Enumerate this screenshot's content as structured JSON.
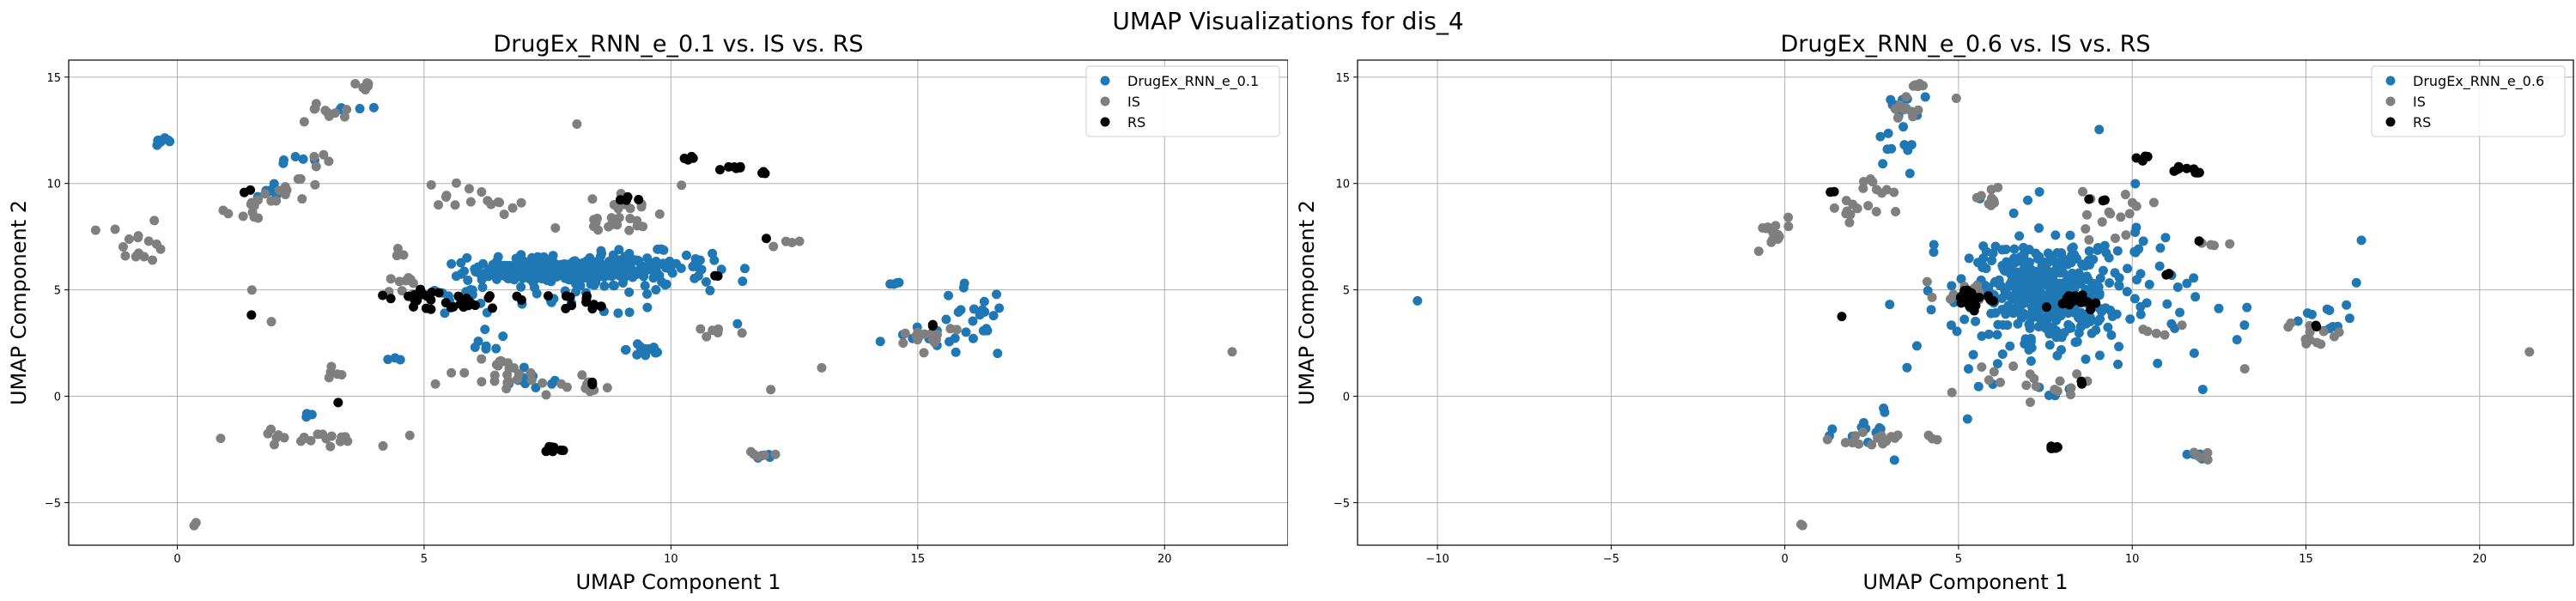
{
  "figure": {
    "title": "UMAP Visualizations for dis_4"
  },
  "colors": {
    "generated": "#1f77b4",
    "IS": "#7f7f7f",
    "RS": "#000000",
    "grid": "#b0b0b0"
  },
  "chart_data": [
    {
      "type": "scatter",
      "title": "DrugEx_RNN_e_0.1 vs. IS vs. RS",
      "xlabel": "UMAP Component 1",
      "ylabel": "UMAP Component 2",
      "xlim": [
        -2.2,
        22.5
      ],
      "ylim": [
        -7.0,
        15.8
      ],
      "xticks": [
        0,
        5,
        10,
        15,
        20
      ],
      "yticks": [
        -5,
        0,
        5,
        10,
        15
      ],
      "grid": true,
      "legend_position": "top-right",
      "series": [
        {
          "name": "DrugEx_RNN_e_0.1",
          "color": "#1f77b4",
          "clusters": [
            {
              "cx": 7.5,
              "cy": 5.9,
              "sx": 0.85,
              "sy": 0.3,
              "n": 160
            },
            {
              "cx": 9.0,
              "cy": 6.1,
              "sx": 0.9,
              "sy": 0.35,
              "n": 130
            },
            {
              "cx": 8.2,
              "cy": 5.2,
              "sx": 1.4,
              "sy": 0.7,
              "n": 60
            },
            {
              "cx": 9.5,
              "cy": 2.2,
              "sx": 0.2,
              "sy": 0.25,
              "n": 16
            },
            {
              "cx": 7.2,
              "cy": 0.7,
              "sx": 0.4,
              "sy": 0.2,
              "n": 10
            },
            {
              "cx": 6.3,
              "cy": 2.3,
              "sx": 0.3,
              "sy": 0.4,
              "n": 8
            },
            {
              "cx": 5.5,
              "cy": 4.6,
              "sx": 0.3,
              "sy": 0.25,
              "n": 10
            },
            {
              "cx": 16.1,
              "cy": 3.4,
              "sx": 0.35,
              "sy": 0.9,
              "n": 22
            },
            {
              "cx": 15.3,
              "cy": 2.8,
              "sx": 0.4,
              "sy": 0.25,
              "n": 12
            },
            {
              "cx": 14.5,
              "cy": 5.2,
              "sx": 0.08,
              "sy": 0.1,
              "n": 4
            },
            {
              "cx": -0.3,
              "cy": 11.9,
              "sx": 0.15,
              "sy": 0.1,
              "n": 8
            },
            {
              "cx": 2.6,
              "cy": 11.2,
              "sx": 0.2,
              "sy": 0.1,
              "n": 5
            },
            {
              "cx": 1.9,
              "cy": 9.6,
              "sx": 0.3,
              "sy": 0.3,
              "n": 6
            },
            {
              "cx": 3.5,
              "cy": 13.5,
              "sx": 0.2,
              "sy": 0.1,
              "n": 4
            },
            {
              "cx": 12.0,
              "cy": -2.8,
              "sx": 0.15,
              "sy": 0.1,
              "n": 4
            },
            {
              "cx": 2.7,
              "cy": -0.8,
              "sx": 0.08,
              "sy": 0.1,
              "n": 3
            },
            {
              "cx": 4.4,
              "cy": 1.7,
              "sx": 0.1,
              "sy": 0.1,
              "n": 3
            }
          ]
        },
        {
          "name": "IS",
          "color": "#7f7f7f",
          "clusters": [
            {
              "cx": -0.8,
              "cy": 7.3,
              "sx": 0.3,
              "sy": 0.5,
              "n": 16
            },
            {
              "cx": 1.6,
              "cy": 8.8,
              "sx": 0.3,
              "sy": 0.3,
              "n": 12
            },
            {
              "cx": 2.4,
              "cy": 9.8,
              "sx": 0.3,
              "sy": 0.3,
              "n": 10
            },
            {
              "cx": 3.0,
              "cy": 13.3,
              "sx": 0.3,
              "sy": 0.3,
              "n": 10
            },
            {
              "cx": 3.8,
              "cy": 14.6,
              "sx": 0.15,
              "sy": 0.08,
              "n": 7
            },
            {
              "cx": 2.9,
              "cy": 11.2,
              "sx": 0.15,
              "sy": 0.1,
              "n": 4
            },
            {
              "cx": 2.5,
              "cy": -2.0,
              "sx": 0.7,
              "sy": 0.2,
              "n": 22
            },
            {
              "cx": 3.2,
              "cy": 1.1,
              "sx": 0.15,
              "sy": 0.2,
              "n": 5
            },
            {
              "cx": 5.7,
              "cy": 9.5,
              "sx": 0.35,
              "sy": 0.3,
              "n": 10
            },
            {
              "cx": 6.5,
              "cy": 9.0,
              "sx": 0.2,
              "sy": 0.2,
              "n": 6
            },
            {
              "cx": 9.0,
              "cy": 8.7,
              "sx": 0.6,
              "sy": 0.6,
              "n": 16
            },
            {
              "cx": 8.7,
              "cy": 7.9,
              "sx": 0.5,
              "sy": 0.3,
              "n": 12
            },
            {
              "cx": 6.9,
              "cy": 0.7,
              "sx": 0.8,
              "sy": 0.35,
              "n": 20
            },
            {
              "cx": 6.6,
              "cy": 1.5,
              "sx": 0.4,
              "sy": 0.3,
              "n": 8
            },
            {
              "cx": 8.2,
              "cy": 0.4,
              "sx": 0.3,
              "sy": 0.2,
              "n": 6
            },
            {
              "cx": 4.8,
              "cy": 5.2,
              "sx": 0.3,
              "sy": 0.3,
              "n": 10
            },
            {
              "cx": 10.8,
              "cy": 3.1,
              "sx": 0.3,
              "sy": 0.2,
              "n": 6
            },
            {
              "cx": 12.5,
              "cy": 7.2,
              "sx": 0.3,
              "sy": 0.1,
              "n": 4
            },
            {
              "cx": 11.8,
              "cy": -2.7,
              "sx": 0.2,
              "sy": 0.1,
              "n": 5
            },
            {
              "cx": 15.2,
              "cy": 2.9,
              "sx": 0.4,
              "sy": 0.3,
              "n": 14
            },
            {
              "cx": 21.4,
              "cy": 2.1,
              "sx": 0.03,
              "sy": 0.03,
              "n": 1
            },
            {
              "cx": 0.4,
              "cy": -6.0,
              "sx": 0.05,
              "sy": 0.05,
              "n": 2
            },
            {
              "cx": 4.5,
              "cy": 6.6,
              "sx": 0.2,
              "sy": 0.2,
              "n": 3
            },
            {
              "cx": 8.1,
              "cy": 12.7,
              "sx": 0.05,
              "sy": 0.05,
              "n": 1
            },
            {
              "cx": 12.0,
              "cy": 0.3,
              "sx": 0.05,
              "sy": 0.05,
              "n": 1
            },
            {
              "cx": 13.1,
              "cy": 1.3,
              "sx": 0.05,
              "sy": 0.05,
              "n": 1
            },
            {
              "cx": 2.0,
              "cy": 3.5,
              "sx": 0.05,
              "sy": 0.05,
              "n": 1
            },
            {
              "cx": 1.5,
              "cy": 5.0,
              "sx": 0.05,
              "sy": 0.05,
              "n": 1
            }
          ]
        },
        {
          "name": "RS",
          "color": "#000000",
          "clusters": [
            {
              "cx": 4.8,
              "cy": 4.7,
              "sx": 0.22,
              "sy": 0.18,
              "n": 16
            },
            {
              "cx": 5.9,
              "cy": 4.5,
              "sx": 0.45,
              "sy": 0.25,
              "n": 20
            },
            {
              "cx": 8.3,
              "cy": 4.5,
              "sx": 0.3,
              "sy": 0.2,
              "n": 12
            },
            {
              "cx": 7.6,
              "cy": -2.5,
              "sx": 0.12,
              "sy": 0.1,
              "n": 7
            },
            {
              "cx": 10.3,
              "cy": 11.2,
              "sx": 0.12,
              "sy": 0.08,
              "n": 4
            },
            {
              "cx": 11.2,
              "cy": 10.7,
              "sx": 0.2,
              "sy": 0.08,
              "n": 6
            },
            {
              "cx": 11.9,
              "cy": 10.5,
              "sx": 0.08,
              "sy": 0.08,
              "n": 4
            },
            {
              "cx": 9.0,
              "cy": 9.3,
              "sx": 0.3,
              "sy": 0.1,
              "n": 4
            },
            {
              "cx": 10.9,
              "cy": 5.7,
              "sx": 0.05,
              "sy": 0.05,
              "n": 2
            },
            {
              "cx": 11.9,
              "cy": 7.3,
              "sx": 0.05,
              "sy": 0.05,
              "n": 1
            },
            {
              "cx": 8.4,
              "cy": 0.6,
              "sx": 0.05,
              "sy": 0.05,
              "n": 2
            },
            {
              "cx": 15.3,
              "cy": 3.3,
              "sx": 0.05,
              "sy": 0.05,
              "n": 2
            },
            {
              "cx": 1.4,
              "cy": 3.8,
              "sx": 0.05,
              "sy": 0.05,
              "n": 1
            },
            {
              "cx": 3.2,
              "cy": -0.2,
              "sx": 0.05,
              "sy": 0.05,
              "n": 1
            },
            {
              "cx": 1.4,
              "cy": 9.6,
              "sx": 0.05,
              "sy": 0.05,
              "n": 2
            }
          ]
        }
      ]
    },
    {
      "type": "scatter",
      "title": "DrugEx_RNN_e_0.6 vs. IS vs. RS",
      "xlabel": "UMAP Component 1",
      "ylabel": "UMAP Component 2",
      "xlim": [
        -12.3,
        22.7
      ],
      "ylim": [
        -7.0,
        15.8
      ],
      "xticks": [
        -10,
        -5,
        0,
        5,
        10,
        15,
        20
      ],
      "yticks": [
        -5,
        0,
        5,
        10,
        15
      ],
      "grid": true,
      "legend_position": "top-right",
      "series": [
        {
          "name": "DrugEx_RNN_e_0.6",
          "color": "#1f77b4",
          "clusters": [
            {
              "cx": 7.5,
              "cy": 4.8,
              "sx": 0.9,
              "sy": 1.0,
              "n": 320
            },
            {
              "cx": 7.8,
              "cy": 4.8,
              "sx": 2.0,
              "sy": 2.0,
              "n": 160
            },
            {
              "cx": 3.5,
              "cy": 13.8,
              "sx": 0.4,
              "sy": 0.8,
              "n": 12
            },
            {
              "cx": 3.1,
              "cy": 11.0,
              "sx": 0.3,
              "sy": 0.5,
              "n": 8
            },
            {
              "cx": 2.6,
              "cy": -1.5,
              "sx": 0.5,
              "sy": 0.6,
              "n": 14
            },
            {
              "cx": 15.8,
              "cy": 3.5,
              "sx": 0.4,
              "sy": 0.8,
              "n": 12
            },
            {
              "cx": 11.8,
              "cy": -2.8,
              "sx": 0.2,
              "sy": 0.1,
              "n": 4
            },
            {
              "cx": -10.6,
              "cy": 4.4,
              "sx": 0.03,
              "sy": 0.03,
              "n": 1
            },
            {
              "cx": 9.0,
              "cy": 12.6,
              "sx": 0.05,
              "sy": 0.05,
              "n": 1
            },
            {
              "cx": 16.6,
              "cy": 7.3,
              "sx": 0.05,
              "sy": 0.05,
              "n": 1
            },
            {
              "cx": 12.0,
              "cy": 0.3,
              "sx": 0.05,
              "sy": 0.05,
              "n": 1
            }
          ]
        },
        {
          "name": "IS",
          "color": "#7f7f7f",
          "clusters": [
            {
              "cx": -0.4,
              "cy": 7.5,
              "sx": 0.3,
              "sy": 0.5,
              "n": 14
            },
            {
              "cx": 2.0,
              "cy": 8.8,
              "sx": 0.4,
              "sy": 0.3,
              "n": 12
            },
            {
              "cx": 2.6,
              "cy": 9.8,
              "sx": 0.3,
              "sy": 0.3,
              "n": 8
            },
            {
              "cx": 3.4,
              "cy": 13.3,
              "sx": 0.3,
              "sy": 0.3,
              "n": 10
            },
            {
              "cx": 3.9,
              "cy": 14.6,
              "sx": 0.15,
              "sy": 0.08,
              "n": 7
            },
            {
              "cx": 2.8,
              "cy": -2.0,
              "sx": 0.7,
              "sy": 0.2,
              "n": 20
            },
            {
              "cx": 7.0,
              "cy": 0.5,
              "sx": 0.9,
              "sy": 0.35,
              "n": 18
            },
            {
              "cx": 9.3,
              "cy": 8.6,
              "sx": 0.6,
              "sy": 0.6,
              "n": 16
            },
            {
              "cx": 6.0,
              "cy": 9.4,
              "sx": 0.35,
              "sy": 0.3,
              "n": 10
            },
            {
              "cx": 5.3,
              "cy": 5.0,
              "sx": 0.4,
              "sy": 0.3,
              "n": 10
            },
            {
              "cx": 15.2,
              "cy": 2.9,
              "sx": 0.4,
              "sy": 0.3,
              "n": 12
            },
            {
              "cx": 21.4,
              "cy": 2.1,
              "sx": 0.03,
              "sy": 0.03,
              "n": 1
            },
            {
              "cx": 0.5,
              "cy": -6.0,
              "sx": 0.05,
              "sy": 0.05,
              "n": 2
            },
            {
              "cx": 11.8,
              "cy": -2.8,
              "sx": 0.2,
              "sy": 0.1,
              "n": 5
            },
            {
              "cx": 12.5,
              "cy": 7.2,
              "sx": 0.3,
              "sy": 0.1,
              "n": 4
            },
            {
              "cx": 10.8,
              "cy": 3.1,
              "sx": 0.3,
              "sy": 0.2,
              "n": 5
            },
            {
              "cx": 5.0,
              "cy": 14.0,
              "sx": 0.05,
              "sy": 0.05,
              "n": 1
            },
            {
              "cx": 13.2,
              "cy": 1.3,
              "sx": 0.05,
              "sy": 0.05,
              "n": 1
            }
          ]
        },
        {
          "name": "RS",
          "color": "#000000",
          "clusters": [
            {
              "cx": 5.4,
              "cy": 4.6,
              "sx": 0.4,
              "sy": 0.25,
              "n": 22
            },
            {
              "cx": 8.3,
              "cy": 4.5,
              "sx": 0.3,
              "sy": 0.2,
              "n": 14
            },
            {
              "cx": 7.6,
              "cy": -2.5,
              "sx": 0.12,
              "sy": 0.1,
              "n": 7
            },
            {
              "cx": 10.4,
              "cy": 11.2,
              "sx": 0.12,
              "sy": 0.08,
              "n": 4
            },
            {
              "cx": 11.2,
              "cy": 10.7,
              "sx": 0.2,
              "sy": 0.08,
              "n": 6
            },
            {
              "cx": 11.9,
              "cy": 10.5,
              "sx": 0.08,
              "sy": 0.08,
              "n": 4
            },
            {
              "cx": 9.0,
              "cy": 9.3,
              "sx": 0.3,
              "sy": 0.1,
              "n": 3
            },
            {
              "cx": 11.0,
              "cy": 5.7,
              "sx": 0.05,
              "sy": 0.05,
              "n": 2
            },
            {
              "cx": 11.9,
              "cy": 7.3,
              "sx": 0.05,
              "sy": 0.05,
              "n": 1
            },
            {
              "cx": 8.5,
              "cy": 0.6,
              "sx": 0.05,
              "sy": 0.05,
              "n": 2
            },
            {
              "cx": 15.3,
              "cy": 3.3,
              "sx": 0.05,
              "sy": 0.05,
              "n": 2
            },
            {
              "cx": 1.5,
              "cy": 3.8,
              "sx": 0.05,
              "sy": 0.05,
              "n": 1
            },
            {
              "cx": 1.4,
              "cy": 9.6,
              "sx": 0.05,
              "sy": 0.05,
              "n": 2
            }
          ]
        }
      ]
    }
  ]
}
